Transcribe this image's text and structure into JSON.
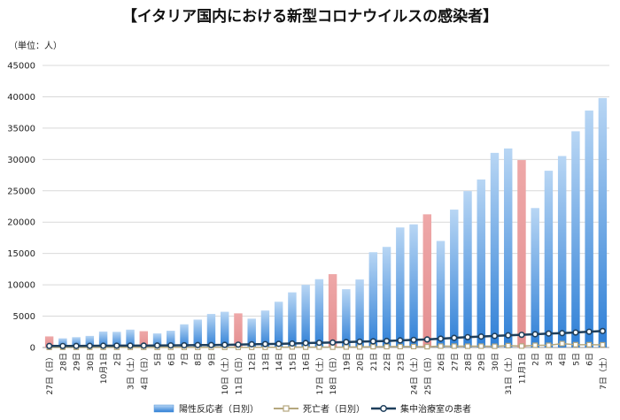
{
  "title": "【イタリア国内における新型コロナウイルスの感染者】",
  "unit_label": "（単位：人）",
  "legend": {
    "positive": "陽性反応者（日別）",
    "deaths": "死亡者（日別）",
    "icu": "集中治療室の患者"
  },
  "colors": {
    "bar_blue_top": "#b8d6f4",
    "bar_blue_bottom": "#2e7fd6",
    "bar_pink": "#e9999a",
    "deaths_line": "#b5a77e",
    "icu_line": "#1f3f5c"
  },
  "chart_data": {
    "type": "bar",
    "title": "【イタリア国内における新型コロナウイルスの感染者】",
    "ylabel": "（単位：人）",
    "ylim": [
      0,
      45000
    ],
    "yticks": [
      0,
      5000,
      10000,
      15000,
      20000,
      25000,
      30000,
      35000,
      40000,
      45000
    ],
    "grid": true,
    "legend_position": "bottom",
    "categories": [
      "27日（日）",
      "28日",
      "29日",
      "30日",
      "10月1日",
      "2日",
      "3日（土）",
      "4日（日）",
      "5日",
      "6日",
      "7日",
      "8日",
      "9日",
      "10日（土）",
      "11日（日）",
      "12日",
      "13日",
      "14日",
      "15日",
      "16日",
      "17日（土）",
      "18日（日）",
      "19日",
      "20日",
      "21日",
      "22日",
      "23日",
      "24日（土）",
      "25日（日）",
      "26日",
      "27日",
      "28日",
      "29日",
      "30日",
      "31日（土）",
      "11月1日",
      "2日",
      "3日",
      "4日",
      "5日",
      "6日",
      "7日（土）"
    ],
    "tick_labels": [
      "27日（日）",
      "28日",
      "29日",
      "30日",
      "10月1日",
      "2日",
      "3日（土）",
      "4日（日）",
      "5日",
      "6日",
      "7日",
      "8日",
      "9日",
      "10日（土）",
      "11日（日）",
      "12日",
      "13日",
      "14日",
      "15日",
      "16日",
      "17日（土）",
      "18日（日）",
      "19日",
      "20日",
      "21日",
      "22日",
      "23日",
      "24日（土）",
      "25日（日）",
      "26日",
      "27日",
      "28日",
      "29日",
      "30日",
      "31日（土）",
      "11月1日",
      "2日",
      "3日",
      "4日",
      "5日",
      "6日",
      "7日（土）"
    ],
    "highlight_sundays": [
      0,
      7,
      14,
      21,
      28,
      35
    ],
    "series": [
      {
        "name": "陽性反応者（日別）",
        "type": "bar",
        "values": [
          1770,
          1460,
          1650,
          1850,
          2550,
          2500,
          2850,
          2600,
          2250,
          2680,
          3700,
          4450,
          5350,
          5700,
          5450,
          4600,
          5900,
          7300,
          8800,
          10000,
          10900,
          11700,
          9300,
          10850,
          15200,
          16050,
          19150,
          19650,
          21250,
          17000,
          22000,
          24950,
          26800,
          31050,
          31750,
          29900,
          22250,
          28200,
          30550,
          34500,
          37800,
          39800
        ]
      },
      {
        "name": "死亡者（日別）",
        "type": "line",
        "values": [
          17,
          24,
          20,
          24,
          23,
          29,
          27,
          24,
          17,
          28,
          28,
          22,
          28,
          29,
          26,
          39,
          41,
          43,
          83,
          47,
          69,
          47,
          73,
          89,
          127,
          136,
          151,
          151,
          128,
          221,
          217,
          205,
          217,
          199,
          297,
          233,
          353,
          352,
          623,
          446,
          445,
          425
        ]
      },
      {
        "name": "集中治療室の患者",
        "type": "line",
        "values": [
          244,
          239,
          251,
          264,
          280,
          291,
          297,
          303,
          319,
          337,
          358,
          387,
          390,
          420,
          452,
          514,
          539,
          586,
          638,
          705,
          750,
          797,
          870,
          926,
          992,
          1049,
          1128,
          1208,
          1284,
          1411,
          1536,
          1651,
          1746,
          1843,
          1939,
          2022,
          2115,
          2225,
          2292,
          2391,
          2515,
          2634
        ]
      }
    ]
  }
}
